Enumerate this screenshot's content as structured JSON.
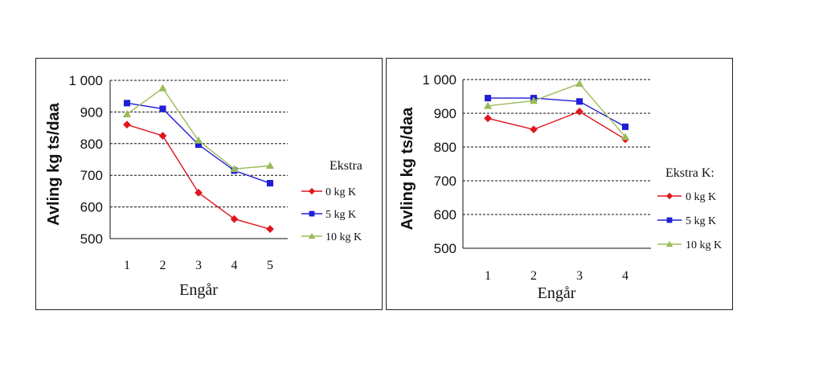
{
  "chart_data": [
    {
      "type": "line",
      "xlabel": "Engår",
      "ylabel": "Avling kg ts/daa",
      "categories": [
        "1",
        "2",
        "3",
        "4",
        "5"
      ],
      "ylim": [
        500,
        1000
      ],
      "yticks": [
        "500",
        "600",
        "700",
        "800",
        "900",
        "1 000"
      ],
      "ytick_values": [
        500,
        600,
        700,
        800,
        900,
        1000
      ],
      "grid": true,
      "legend_title": "Ekstra",
      "legend_position": "right",
      "series": [
        {
          "name": "0 kg K",
          "color": "#e0161f",
          "marker": "diamond",
          "values": [
            860,
            825,
            645,
            562,
            530
          ]
        },
        {
          "name": "5 kg K",
          "color": "#1f1fd6",
          "marker": "square",
          "values": [
            928,
            910,
            797,
            715,
            675
          ]
        },
        {
          "name": "10 kg K",
          "color": "#9bbb59",
          "marker": "triangle",
          "values": [
            893,
            975,
            810,
            720,
            730
          ]
        }
      ]
    },
    {
      "type": "line",
      "xlabel": "Engår",
      "ylabel": "Avling kg ts/daa",
      "categories": [
        "1",
        "2",
        "3",
        "4"
      ],
      "ylim": [
        500,
        1000
      ],
      "yticks": [
        "500",
        "600",
        "700",
        "800",
        "900",
        "1 000"
      ],
      "ytick_values": [
        500,
        600,
        700,
        800,
        900,
        1000
      ],
      "grid": true,
      "legend_title": "Ekstra K:",
      "legend_position": "right",
      "series": [
        {
          "name": "0 kg K",
          "color": "#e0161f",
          "marker": "diamond",
          "values": [
            885,
            852,
            905,
            823
          ]
        },
        {
          "name": "5 kg K",
          "color": "#1f1fd6",
          "marker": "square",
          "values": [
            945,
            945,
            935,
            860
          ]
        },
        {
          "name": "10 kg K",
          "color": "#9bbb59",
          "marker": "triangle",
          "values": [
            922,
            937,
            988,
            830
          ]
        }
      ]
    }
  ]
}
